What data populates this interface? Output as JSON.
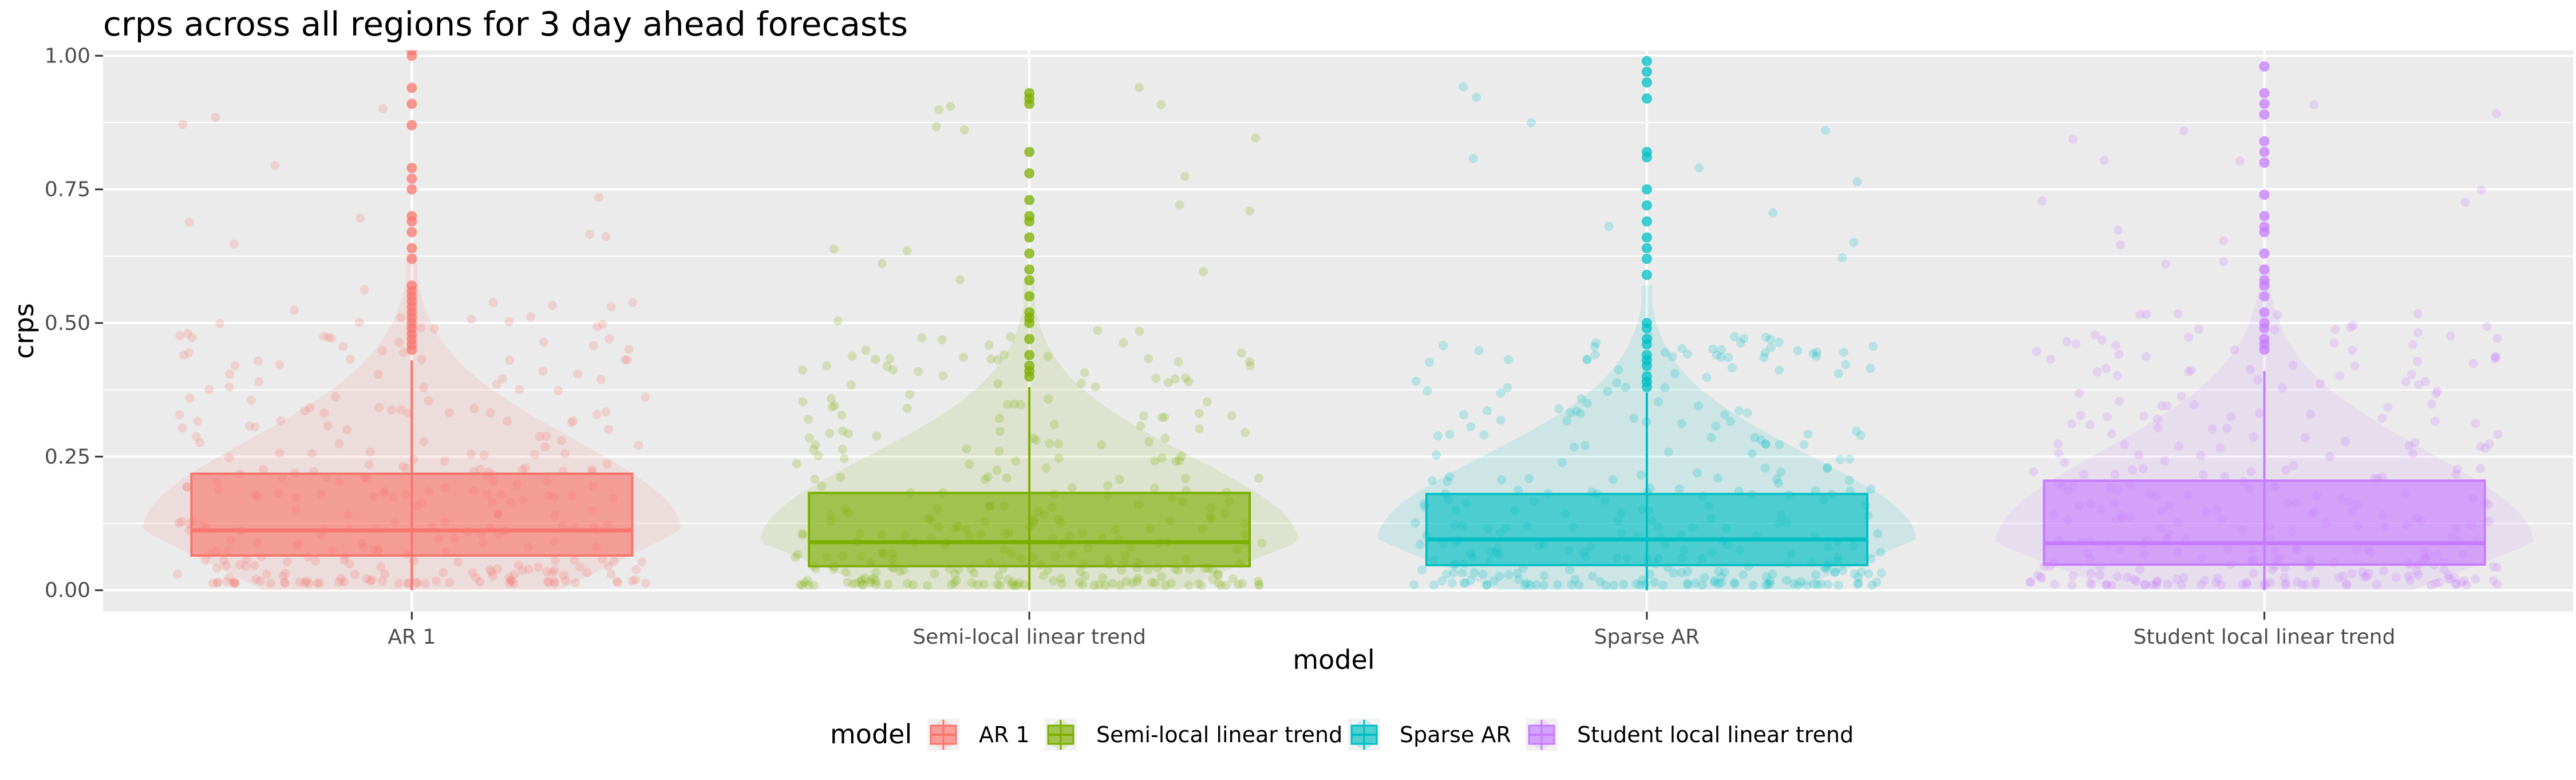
{
  "chart_data": {
    "type": "boxplot",
    "title": "crps across all regions for 3 day ahead forecasts",
    "xlabel": "model",
    "ylabel": "crps",
    "ylim": [
      -0.04,
      1.01
    ],
    "yticks": [
      0.0,
      0.25,
      0.5,
      0.75,
      1.0
    ],
    "ytick_labels": [
      "0.00",
      "0.25",
      "0.50",
      "0.75",
      "1.00"
    ],
    "grid": true,
    "legend": {
      "title": "model",
      "position": "bottom"
    },
    "categories": [
      "AR 1",
      "Semi-local linear trend",
      "Sparse AR",
      "Student local linear trend"
    ],
    "series": [
      {
        "name": "AR 1",
        "color": "#F8766D",
        "box": {
          "q1": 0.065,
          "median": 0.112,
          "q3": 0.218,
          "whisker_low": 0.0,
          "whisker_high": 0.43
        },
        "outliers": [
          0.45,
          0.46,
          0.47,
          0.48,
          0.49,
          0.5,
          0.51,
          0.52,
          0.53,
          0.54,
          0.55,
          0.56,
          0.57,
          0.62,
          0.64,
          0.67,
          0.69,
          0.7,
          0.75,
          0.77,
          0.79,
          0.87,
          0.91,
          0.94,
          1.0,
          1.01
        ]
      },
      {
        "name": "Semi-local linear trend",
        "color": "#7CAE00",
        "box": {
          "q1": 0.045,
          "median": 0.09,
          "q3": 0.182,
          "whisker_low": 0.0,
          "whisker_high": 0.38
        },
        "outliers": [
          0.4,
          0.41,
          0.42,
          0.44,
          0.47,
          0.5,
          0.51,
          0.52,
          0.55,
          0.58,
          0.6,
          0.63,
          0.66,
          0.69,
          0.7,
          0.73,
          0.78,
          0.82,
          0.91,
          0.92,
          0.93
        ]
      },
      {
        "name": "Sparse AR",
        "color": "#00BFC4",
        "box": {
          "q1": 0.047,
          "median": 0.095,
          "q3": 0.18,
          "whisker_low": 0.0,
          "whisker_high": 0.37
        },
        "outliers": [
          0.38,
          0.39,
          0.4,
          0.42,
          0.43,
          0.44,
          0.46,
          0.47,
          0.49,
          0.5,
          0.59,
          0.62,
          0.64,
          0.66,
          0.69,
          0.72,
          0.75,
          0.81,
          0.82,
          0.92,
          0.95,
          0.97,
          0.99
        ]
      },
      {
        "name": "Student local linear trend",
        "color": "#C77CFF",
        "box": {
          "q1": 0.048,
          "median": 0.088,
          "q3": 0.205,
          "whisker_low": 0.0,
          "whisker_high": 0.41
        },
        "outliers": [
          0.45,
          0.46,
          0.47,
          0.49,
          0.5,
          0.52,
          0.55,
          0.57,
          0.58,
          0.6,
          0.63,
          0.67,
          0.68,
          0.7,
          0.74,
          0.8,
          0.82,
          0.84,
          0.89,
          0.91,
          0.93,
          0.98
        ]
      }
    ]
  }
}
